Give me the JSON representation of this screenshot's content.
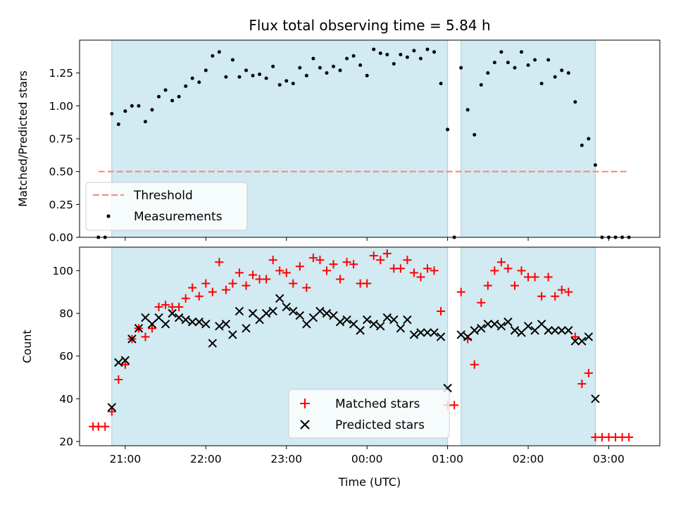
{
  "chart_data": [
    {
      "type": "scatter",
      "title": "Flux total observing time = 5.84 h",
      "xlabel": "",
      "ylabel": "Matched/Predicted stars",
      "ylim": [
        0,
        1.5
      ],
      "yticks": [
        "0.00",
        "0.25",
        "0.50",
        "0.75",
        "1.00",
        "1.25"
      ],
      "xlim": [
        "20:26",
        "03:38"
      ],
      "observing_windows": [
        [
          "20:50",
          "01:00"
        ],
        [
          "01:10",
          "02:50"
        ]
      ],
      "threshold": {
        "name": "Threshold",
        "value": 0.5,
        "color": "#ff7f7f",
        "x_range": [
          "20:40",
          "03:15"
        ]
      },
      "legend": {
        "location": "lower left",
        "entries": [
          "Threshold",
          "Measurements"
        ]
      },
      "series": [
        {
          "name": "Measurements",
          "color": "#000000",
          "marker": "dot",
          "points": [
            [
              "20:40",
              0.0
            ],
            [
              "20:45",
              0.0
            ],
            [
              "20:50",
              0.94
            ],
            [
              "20:55",
              0.86
            ],
            [
              "21:00",
              0.96
            ],
            [
              "21:05",
              1.0
            ],
            [
              "21:10",
              1.0
            ],
            [
              "21:15",
              0.88
            ],
            [
              "21:20",
              0.97
            ],
            [
              "21:25",
              1.07
            ],
            [
              "21:30",
              1.12
            ],
            [
              "21:35",
              1.04
            ],
            [
              "21:40",
              1.07
            ],
            [
              "21:45",
              1.15
            ],
            [
              "21:50",
              1.21
            ],
            [
              "21:55",
              1.18
            ],
            [
              "22:00",
              1.27
            ],
            [
              "22:05",
              1.38
            ],
            [
              "22:10",
              1.41
            ],
            [
              "22:15",
              1.22
            ],
            [
              "22:20",
              1.35
            ],
            [
              "22:25",
              1.22
            ],
            [
              "22:30",
              1.27
            ],
            [
              "22:35",
              1.23
            ],
            [
              "22:40",
              1.24
            ],
            [
              "22:45",
              1.21
            ],
            [
              "22:50",
              1.3
            ],
            [
              "22:55",
              1.16
            ],
            [
              "23:00",
              1.19
            ],
            [
              "23:05",
              1.17
            ],
            [
              "23:10",
              1.29
            ],
            [
              "23:15",
              1.23
            ],
            [
              "23:20",
              1.36
            ],
            [
              "23:25",
              1.29
            ],
            [
              "23:30",
              1.25
            ],
            [
              "23:35",
              1.3
            ],
            [
              "23:40",
              1.27
            ],
            [
              "23:45",
              1.36
            ],
            [
              "23:50",
              1.38
            ],
            [
              "23:55",
              1.31
            ],
            [
              "00:00",
              1.23
            ],
            [
              "00:05",
              1.43
            ],
            [
              "00:10",
              1.4
            ],
            [
              "00:15",
              1.39
            ],
            [
              "00:20",
              1.32
            ],
            [
              "00:25",
              1.39
            ],
            [
              "00:30",
              1.37
            ],
            [
              "00:35",
              1.42
            ],
            [
              "00:40",
              1.36
            ],
            [
              "00:45",
              1.43
            ],
            [
              "00:50",
              1.41
            ],
            [
              "00:55",
              1.17
            ],
            [
              "01:00",
              0.82
            ],
            [
              "01:05",
              0.0
            ],
            [
              "01:10",
              1.29
            ],
            [
              "01:15",
              0.97
            ],
            [
              "01:20",
              0.78
            ],
            [
              "01:25",
              1.16
            ],
            [
              "01:30",
              1.25
            ],
            [
              "01:35",
              1.33
            ],
            [
              "01:40",
              1.41
            ],
            [
              "01:45",
              1.33
            ],
            [
              "01:50",
              1.29
            ],
            [
              "01:55",
              1.41
            ],
            [
              "02:00",
              1.31
            ],
            [
              "02:05",
              1.35
            ],
            [
              "02:10",
              1.17
            ],
            [
              "02:15",
              1.35
            ],
            [
              "02:20",
              1.22
            ],
            [
              "02:25",
              1.27
            ],
            [
              "02:30",
              1.25
            ],
            [
              "02:35",
              1.03
            ],
            [
              "02:40",
              0.7
            ],
            [
              "02:45",
              0.75
            ],
            [
              "02:50",
              0.55
            ],
            [
              "02:55",
              0.0
            ],
            [
              "03:00",
              0.0
            ],
            [
              "03:05",
              0.0
            ],
            [
              "03:10",
              0.0
            ],
            [
              "03:15",
              0.0
            ]
          ]
        }
      ]
    },
    {
      "type": "scatter",
      "title": "",
      "xlabel": "Time (UTC)",
      "ylabel": "Count",
      "ylim": [
        18,
        111
      ],
      "yticks": [
        "20",
        "40",
        "60",
        "80",
        "100"
      ],
      "xlim": [
        "20:26",
        "03:38"
      ],
      "xticks": [
        "21:00",
        "22:00",
        "23:00",
        "00:00",
        "01:00",
        "02:00",
        "03:00"
      ],
      "observing_windows": [
        [
          "20:50",
          "01:00"
        ],
        [
          "01:10",
          "02:50"
        ]
      ],
      "legend": {
        "location": "lower center",
        "entries": [
          "Matched stars",
          "Predicted stars"
        ]
      },
      "series": [
        {
          "name": "Matched stars",
          "color": "#ff0000",
          "marker": "plus",
          "points": [
            [
              "20:36",
              27
            ],
            [
              "20:40",
              27
            ],
            [
              "20:45",
              27
            ],
            [
              "20:50",
              34
            ],
            [
              "20:55",
              49
            ],
            [
              "21:00",
              56
            ],
            [
              "21:05",
              68
            ],
            [
              "21:10",
              73
            ],
            [
              "21:15",
              69
            ],
            [
              "21:20",
              73
            ],
            [
              "21:25",
              83
            ],
            [
              "21:30",
              84
            ],
            [
              "21:35",
              83
            ],
            [
              "21:40",
              83
            ],
            [
              "21:45",
              87
            ],
            [
              "21:50",
              92
            ],
            [
              "21:55",
              88
            ],
            [
              "22:00",
              94
            ],
            [
              "22:05",
              90
            ],
            [
              "22:10",
              104
            ],
            [
              "22:15",
              91
            ],
            [
              "22:20",
              94
            ],
            [
              "22:25",
              99
            ],
            [
              "22:30",
              93
            ],
            [
              "22:35",
              98
            ],
            [
              "22:40",
              96
            ],
            [
              "22:45",
              96
            ],
            [
              "22:50",
              105
            ],
            [
              "22:55",
              100
            ],
            [
              "23:00",
              99
            ],
            [
              "23:05",
              94
            ],
            [
              "23:10",
              102
            ],
            [
              "23:15",
              92
            ],
            [
              "23:20",
              106
            ],
            [
              "23:25",
              105
            ],
            [
              "23:30",
              100
            ],
            [
              "23:35",
              103
            ],
            [
              "23:40",
              96
            ],
            [
              "23:45",
              104
            ],
            [
              "23:50",
              103
            ],
            [
              "23:55",
              94
            ],
            [
              "00:00",
              94
            ],
            [
              "00:05",
              107
            ],
            [
              "00:10",
              105
            ],
            [
              "00:15",
              108
            ],
            [
              "00:20",
              101
            ],
            [
              "00:25",
              101
            ],
            [
              "00:30",
              105
            ],
            [
              "00:35",
              99
            ],
            [
              "00:40",
              97
            ],
            [
              "00:45",
              101
            ],
            [
              "00:50",
              100
            ],
            [
              "00:55",
              81
            ],
            [
              "01:00",
              37
            ],
            [
              "01:05",
              37
            ],
            [
              "01:10",
              90
            ],
            [
              "01:15",
              68
            ],
            [
              "01:20",
              56
            ],
            [
              "01:25",
              85
            ],
            [
              "01:30",
              93
            ],
            [
              "01:35",
              100
            ],
            [
              "01:40",
              104
            ],
            [
              "01:45",
              101
            ],
            [
              "01:50",
              93
            ],
            [
              "01:55",
              100
            ],
            [
              "02:00",
              97
            ],
            [
              "02:05",
              97
            ],
            [
              "02:10",
              88
            ],
            [
              "02:15",
              97
            ],
            [
              "02:20",
              88
            ],
            [
              "02:25",
              91
            ],
            [
              "02:30",
              90
            ],
            [
              "02:35",
              69
            ],
            [
              "02:40",
              47
            ],
            [
              "02:45",
              52
            ],
            [
              "02:50",
              22
            ],
            [
              "02:55",
              22
            ],
            [
              "03:00",
              22
            ],
            [
              "03:05",
              22
            ],
            [
              "03:10",
              22
            ],
            [
              "03:15",
              22
            ]
          ]
        },
        {
          "name": "Predicted stars",
          "color": "#000000",
          "marker": "x",
          "points": [
            [
              "20:50",
              36
            ],
            [
              "20:55",
              57
            ],
            [
              "21:00",
              58
            ],
            [
              "21:05",
              68
            ],
            [
              "21:10",
              73
            ],
            [
              "21:15",
              78
            ],
            [
              "21:20",
              75
            ],
            [
              "21:25",
              78
            ],
            [
              "21:30",
              75
            ],
            [
              "21:35",
              80
            ],
            [
              "21:40",
              78
            ],
            [
              "21:45",
              77
            ],
            [
              "21:50",
              76
            ],
            [
              "21:55",
              76
            ],
            [
              "22:00",
              75
            ],
            [
              "22:05",
              66
            ],
            [
              "22:10",
              74
            ],
            [
              "22:15",
              75
            ],
            [
              "22:20",
              70
            ],
            [
              "22:25",
              81
            ],
            [
              "22:30",
              73
            ],
            [
              "22:35",
              80
            ],
            [
              "22:40",
              77
            ],
            [
              "22:45",
              80
            ],
            [
              "22:50",
              81
            ],
            [
              "22:55",
              87
            ],
            [
              "23:00",
              83
            ],
            [
              "23:05",
              81
            ],
            [
              "23:10",
              79
            ],
            [
              "23:15",
              75
            ],
            [
              "23:20",
              78
            ],
            [
              "23:25",
              81
            ],
            [
              "23:30",
              80
            ],
            [
              "23:35",
              79
            ],
            [
              "23:40",
              76
            ],
            [
              "23:45",
              77
            ],
            [
              "23:50",
              75
            ],
            [
              "23:55",
              72
            ],
            [
              "00:00",
              77
            ],
            [
              "00:05",
              75
            ],
            [
              "00:10",
              74
            ],
            [
              "00:15",
              78
            ],
            [
              "00:20",
              77
            ],
            [
              "00:25",
              73
            ],
            [
              "00:30",
              77
            ],
            [
              "00:35",
              70
            ],
            [
              "00:40",
              71
            ],
            [
              "00:45",
              71
            ],
            [
              "00:50",
              71
            ],
            [
              "00:55",
              69
            ],
            [
              "01:00",
              45
            ],
            [
              "01:10",
              70
            ],
            [
              "01:15",
              69
            ],
            [
              "01:20",
              72
            ],
            [
              "01:25",
              73
            ],
            [
              "01:30",
              75
            ],
            [
              "01:35",
              75
            ],
            [
              "01:40",
              74
            ],
            [
              "01:45",
              76
            ],
            [
              "01:50",
              72
            ],
            [
              "01:55",
              71
            ],
            [
              "02:00",
              74
            ],
            [
              "02:05",
              72
            ],
            [
              "02:10",
              75
            ],
            [
              "02:15",
              72
            ],
            [
              "02:20",
              72
            ],
            [
              "02:25",
              72
            ],
            [
              "02:30",
              72
            ],
            [
              "02:35",
              67
            ],
            [
              "02:40",
              67
            ],
            [
              "02:45",
              69
            ],
            [
              "02:50",
              40
            ]
          ]
        }
      ]
    }
  ]
}
